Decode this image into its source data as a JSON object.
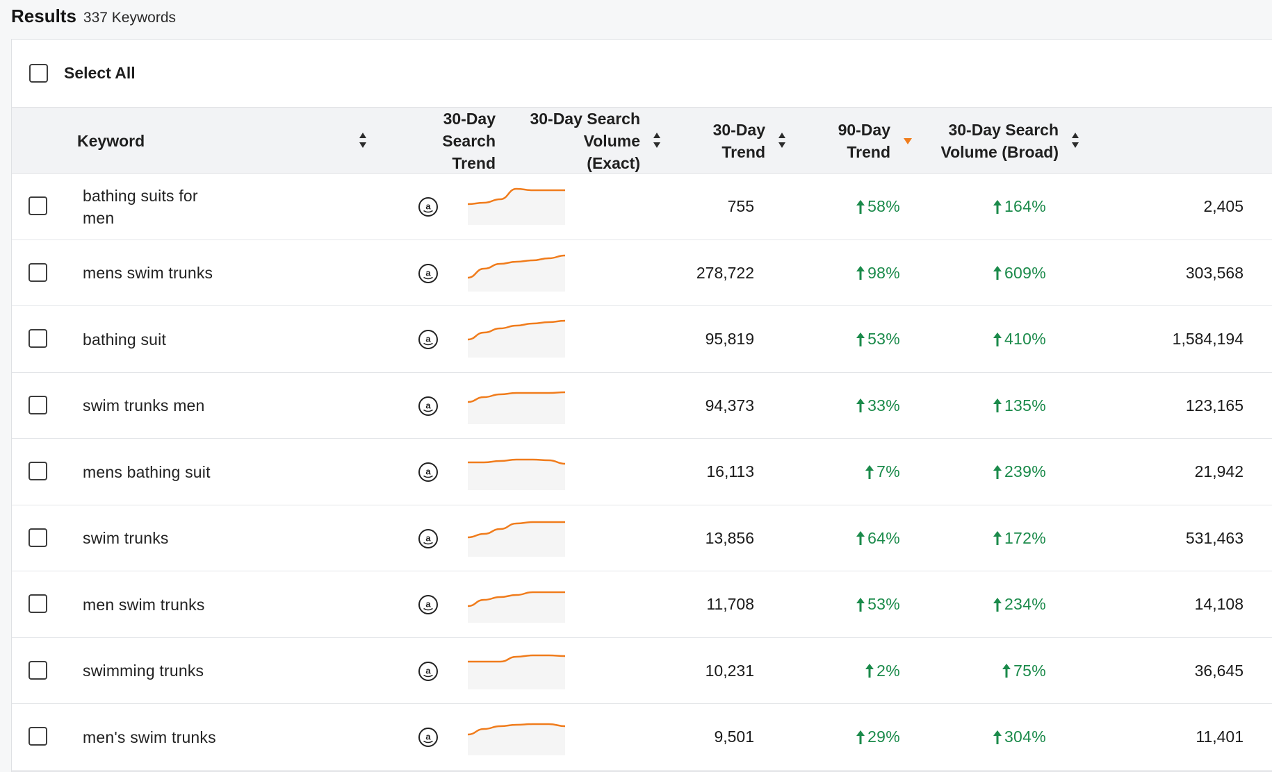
{
  "header": {
    "title": "Results",
    "count": "337 Keywords"
  },
  "select_all_label": "Select All",
  "columns": {
    "keyword": "Keyword",
    "trend_30_line1": "30-Day Search",
    "trend_30_line2": "Trend",
    "exact_line1": "30-Day Search",
    "exact_line2": "Volume (Exact)",
    "t30_line1": "30-Day",
    "t30_line2": "Trend",
    "t90_line1": "90-Day",
    "t90_line2": "Trend",
    "broad_line1": "30-Day Search",
    "broad_line2": "Volume (Broad)"
  },
  "colors": {
    "accent_orange": "#f07c1c",
    "trend_green": "#1a8a4a"
  },
  "rows": [
    {
      "keyword": "bathing suits for men",
      "exact": "755",
      "t30": "58%",
      "t90": "164%",
      "broad": "2,405",
      "spark": [
        30,
        32,
        37,
        52,
        50,
        50,
        50
      ]
    },
    {
      "keyword": "mens swim trunks",
      "exact": "278,722",
      "t30": "98%",
      "t90": "609%",
      "broad": "303,568",
      "spark": [
        20,
        33,
        40,
        43,
        45,
        48,
        52
      ]
    },
    {
      "keyword": "bathing suit",
      "exact": "95,819",
      "t30": "53%",
      "t90": "410%",
      "broad": "1,584,194",
      "spark": [
        26,
        36,
        42,
        46,
        49,
        51,
        53
      ]
    },
    {
      "keyword": "swim trunks men",
      "exact": "94,373",
      "t30": "33%",
      "t90": "135%",
      "broad": "123,165",
      "spark": [
        32,
        39,
        43,
        45,
        45,
        45,
        46
      ]
    },
    {
      "keyword": "mens bathing suit",
      "exact": "16,113",
      "t30": "7%",
      "t90": "239%",
      "broad": "21,942",
      "spark": [
        40,
        40,
        42,
        44,
        44,
        43,
        38
      ]
    },
    {
      "keyword": "swim trunks",
      "exact": "13,856",
      "t30": "64%",
      "t90": "172%",
      "broad": "531,463",
      "spark": [
        28,
        33,
        40,
        48,
        50,
        50,
        50
      ]
    },
    {
      "keyword": "men swim trunks",
      "exact": "11,708",
      "t30": "53%",
      "t90": "234%",
      "broad": "14,108",
      "spark": [
        24,
        33,
        37,
        40,
        44,
        44,
        44
      ]
    },
    {
      "keyword": "swimming trunks",
      "exact": "10,231",
      "t30": "2%",
      "t90": "75%",
      "broad": "36,645",
      "spark": [
        40,
        40,
        40,
        47,
        49,
        49,
        48
      ]
    },
    {
      "keyword": "men's swim trunks",
      "exact": "9,501",
      "t30": "29%",
      "t90": "304%",
      "broad": "11,401",
      "spark": [
        30,
        38,
        42,
        44,
        45,
        45,
        42
      ]
    }
  ]
}
